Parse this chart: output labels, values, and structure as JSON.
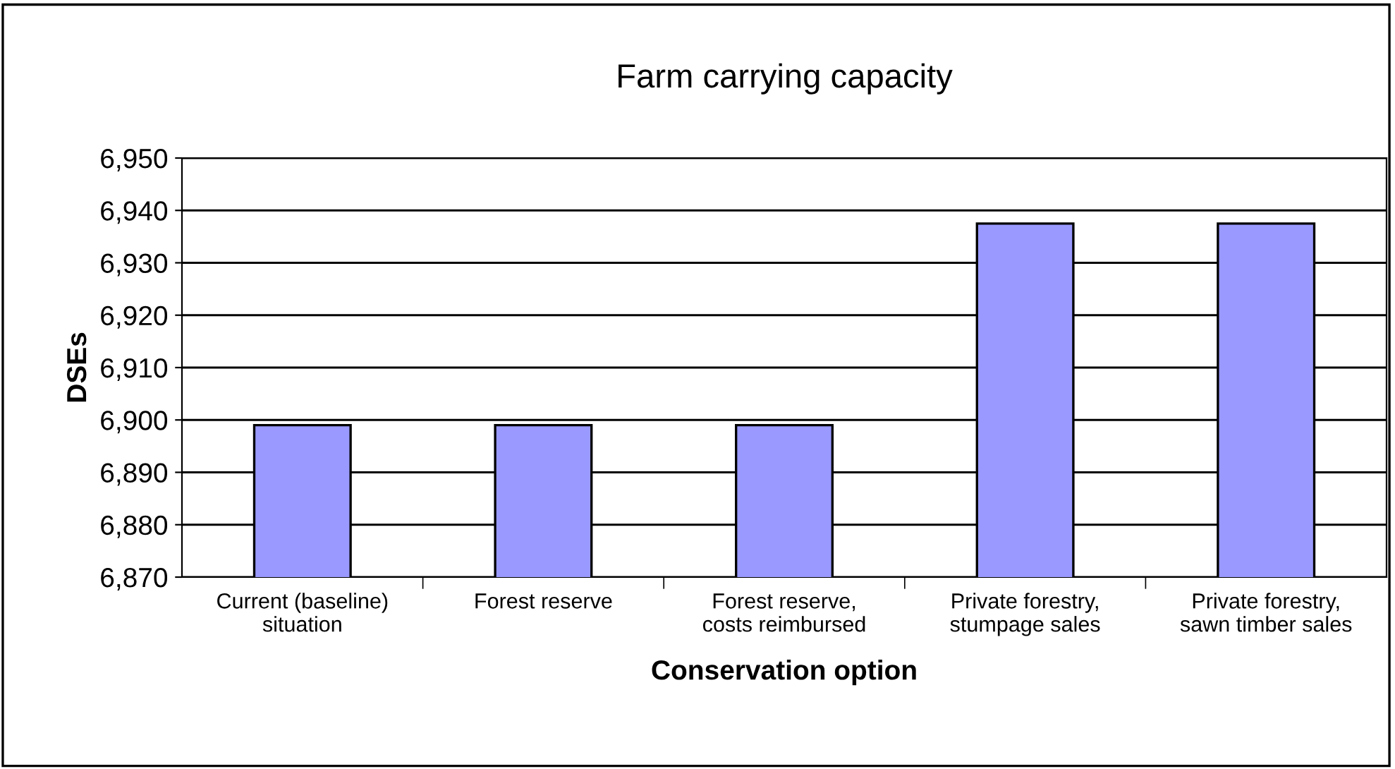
{
  "chart_data": {
    "type": "bar",
    "title": "Farm carrying capacity",
    "xlabel": "Conservation option",
    "ylabel": "DSEs",
    "categories": [
      "Current (baseline)\nsituation",
      "Forest reserve",
      "Forest reserve,\ncosts reimbursed",
      "Private forestry,\nstumpage sales",
      "Private forestry,\nsawn timber sales"
    ],
    "values": [
      6899,
      6899,
      6899,
      6937.5,
      6937.5
    ],
    "color": "#9999ff",
    "ylim": [
      6870,
      6950
    ],
    "yticks": [
      {
        "value": 6870,
        "label": "6,870"
      },
      {
        "value": 6880,
        "label": "6,880"
      },
      {
        "value": 6890,
        "label": "6,890"
      },
      {
        "value": 6900,
        "label": "6,900"
      },
      {
        "value": 6910,
        "label": "6,910"
      },
      {
        "value": 6920,
        "label": "6,920"
      },
      {
        "value": 6930,
        "label": "6,930"
      },
      {
        "value": 6940,
        "label": "6,940"
      },
      {
        "value": 6950,
        "label": "6,950"
      }
    ],
    "grid": "y",
    "legend": false
  }
}
